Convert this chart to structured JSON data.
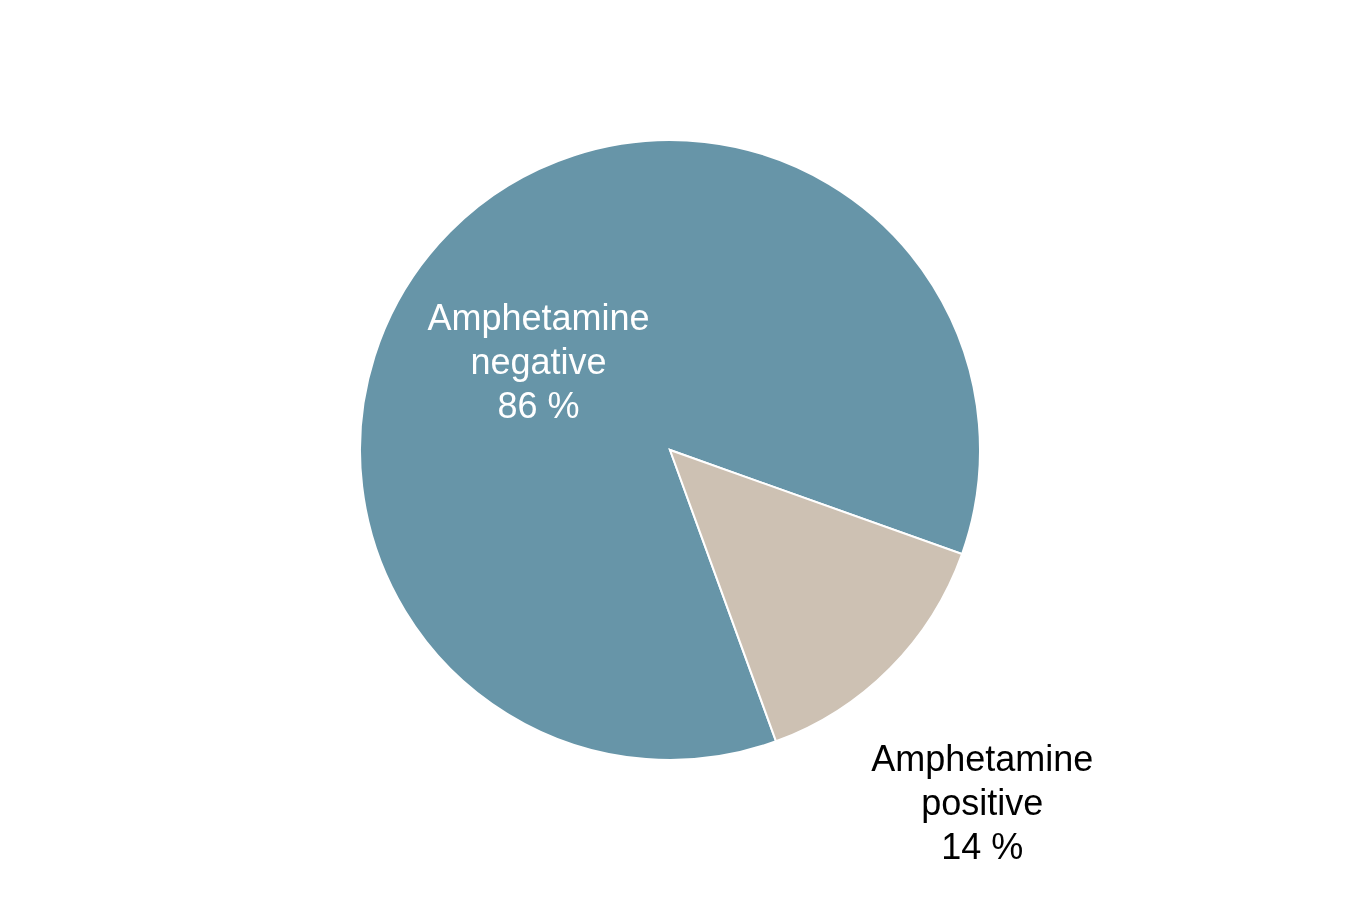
{
  "chart_data": {
    "type": "pie",
    "categories": [
      "Amphetamine negative",
      "Amphetamine positive"
    ],
    "values": [
      86,
      14
    ],
    "colors": [
      "#6795a8",
      "#cdc1b3"
    ],
    "value_labels": [
      "86 %",
      "14 %"
    ],
    "legend": false
  }
}
